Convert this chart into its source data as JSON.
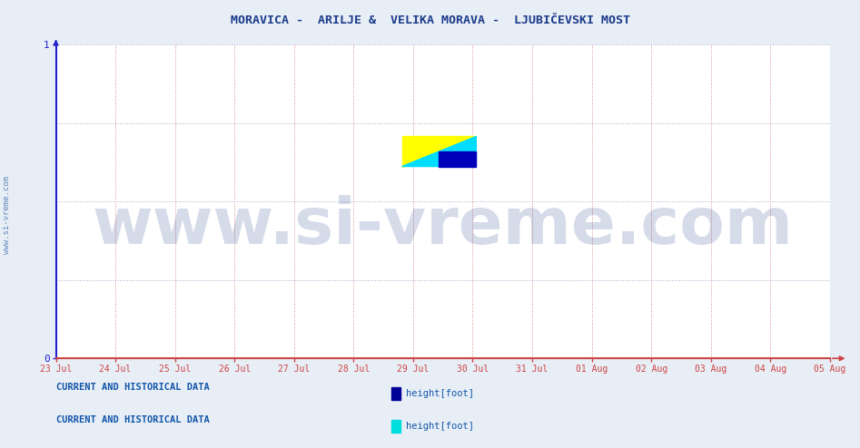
{
  "title": "MORAVICA -  ARILJE &  VELIKA MORAVA -  LJUBIČEVSKI MOST",
  "title_color": "#1a3a8a",
  "title_fontsize": 9.5,
  "bg_color": "#ffffff",
  "outer_bg_color": "#e8eef5",
  "xticklabels": [
    "23 Jul",
    "24 Jul",
    "25 Jul",
    "26 Jul",
    "27 Jul",
    "28 Jul",
    "29 Jul",
    "30 Jul",
    "31 Jul",
    "01 Aug",
    "02 Aug",
    "03 Aug",
    "04 Aug",
    "05 Aug"
  ],
  "xtick_count": 14,
  "ylim": [
    0,
    1
  ],
  "xlim": [
    0,
    13
  ],
  "yticks": [
    0,
    1
  ],
  "yticklabels": [
    "0",
    "1"
  ],
  "axis_color": "#2222cc",
  "xaxis_color": "#cc4444",
  "grid_color_v": "#dd8888",
  "grid_color_h": "#aaaacc",
  "watermark_text": "www.si-vreme.com",
  "watermark_color": "#1a3a8a",
  "watermark_alpha": 0.18,
  "watermark_fontsize": 52,
  "sidewater_text": "www.si-vreme.com",
  "sidewater_color": "#3366aa",
  "sidewater_fontsize": 6.5,
  "legend1_color": "#000099",
  "legend2_color": "#00dddd",
  "legend_label": "height[foot]",
  "section_label": "CURRENT AND HISTORICAL DATA",
  "section_label_color": "#1155aa",
  "section_label_fontsize": 7.5,
  "logo_yellow": "#ffff00",
  "logo_cyan": "#00ddff",
  "logo_blue": "#0000bb"
}
